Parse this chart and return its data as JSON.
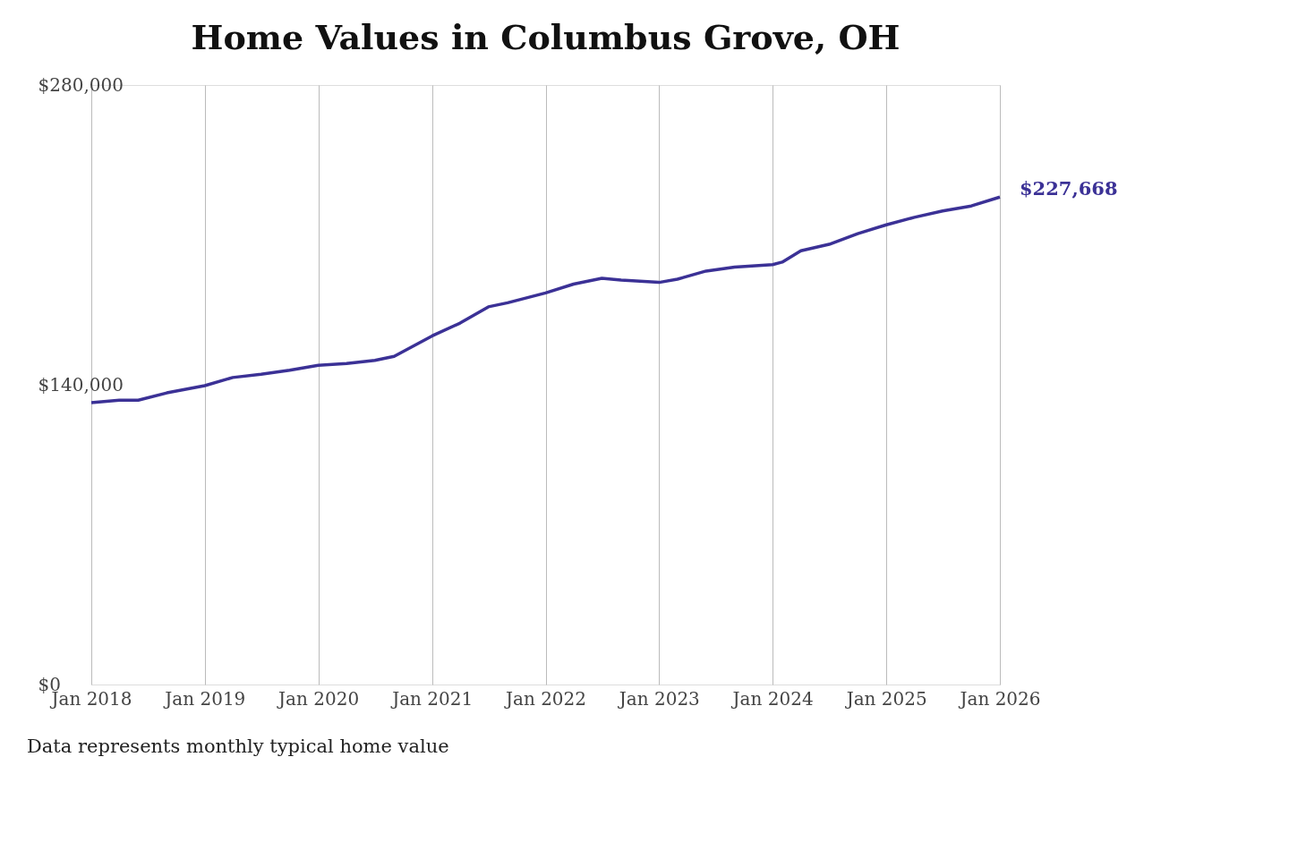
{
  "chart_data": {
    "type": "line",
    "title": "Home Values in Columbus Grove, OH",
    "x": [
      "2018-01",
      "2018-04",
      "2018-06",
      "2018-09",
      "2019-01",
      "2019-04",
      "2019-07",
      "2019-10",
      "2020-01",
      "2020-04",
      "2020-07",
      "2020-09",
      "2021-01",
      "2021-04",
      "2021-07",
      "2021-09",
      "2022-01",
      "2022-04",
      "2022-07",
      "2022-09",
      "2023-01",
      "2023-03",
      "2023-06",
      "2023-09",
      "2024-01",
      "2024-02",
      "2024-04",
      "2024-07",
      "2024-10",
      "2025-01",
      "2025-04",
      "2025-07",
      "2025-10",
      "2026-01"
    ],
    "series": [
      {
        "color": "#3b3196",
        "values": [
          131600,
          132800,
          132800,
          136200,
          139600,
          143400,
          144900,
          146800,
          149100,
          149900,
          151400,
          153300,
          162800,
          168800,
          176400,
          178300,
          182900,
          187000,
          189700,
          188900,
          187800,
          189300,
          193100,
          195000,
          196100,
          197300,
          202600,
          205600,
          210600,
          214700,
          218200,
          221200,
          223500,
          227668
        ]
      }
    ],
    "xlim": [
      "2018-01",
      "2026-01"
    ],
    "xticks": [
      {
        "value": "2018-01",
        "label": "Jan 2018"
      },
      {
        "value": "2019-01",
        "label": "Jan 2019"
      },
      {
        "value": "2020-01",
        "label": "Jan 2020"
      },
      {
        "value": "2021-01",
        "label": "Jan 2021"
      },
      {
        "value": "2022-01",
        "label": "Jan 2022"
      },
      {
        "value": "2023-01",
        "label": "Jan 2023"
      },
      {
        "value": "2024-01",
        "label": "Jan 2024"
      },
      {
        "value": "2025-01",
        "label": "Jan 2025"
      },
      {
        "value": "2026-01",
        "label": "Jan 2026"
      }
    ],
    "ylim": [
      0,
      280000
    ],
    "yticks": [
      {
        "value": 0,
        "label": "$0"
      },
      {
        "value": 140000,
        "label": "$140,000"
      },
      {
        "value": 280000,
        "label": "$280,000"
      }
    ],
    "grid": "x",
    "marker": "none",
    "line_style": "solid",
    "annotations": [
      {
        "text": "$227,668",
        "x": "2026-01",
        "y": 227668
      },
      "Data represents monthly typical home value"
    ]
  }
}
